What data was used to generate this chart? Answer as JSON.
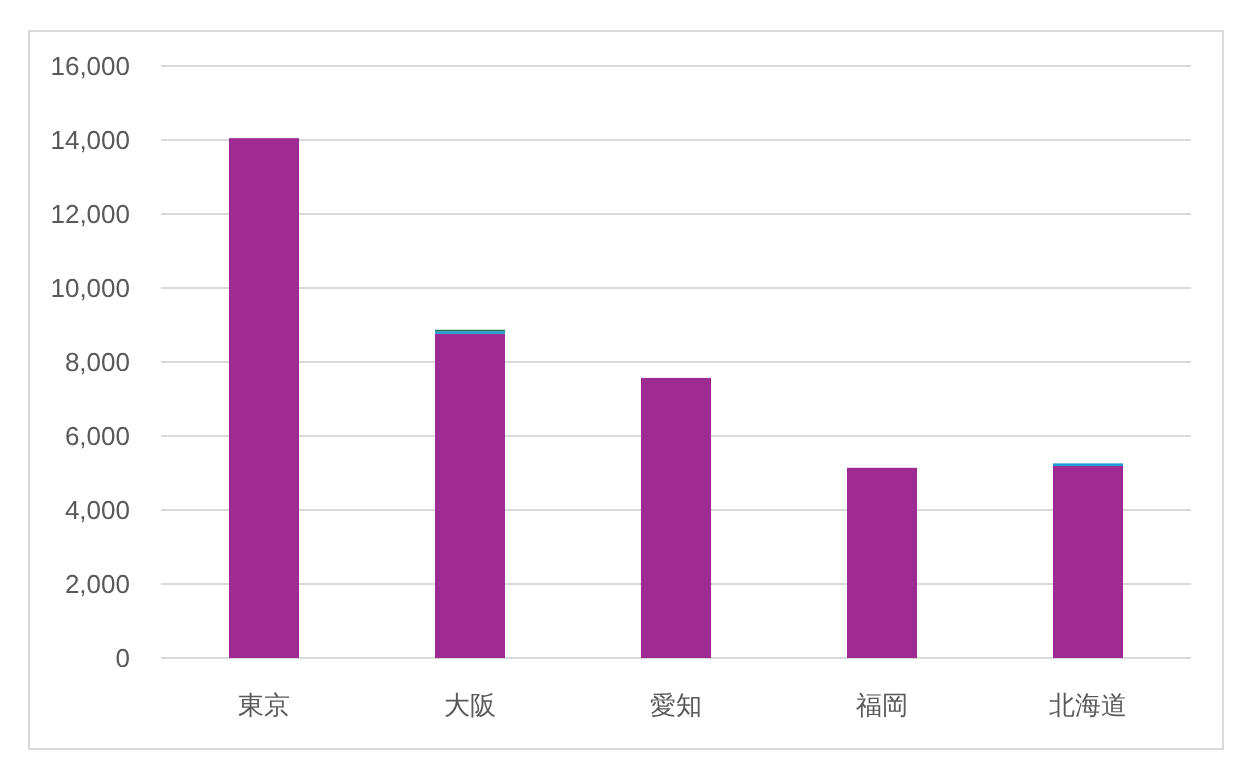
{
  "chart_data": {
    "type": "bar",
    "stacked": true,
    "categories": [
      "東京",
      "大阪",
      "愛知",
      "福岡",
      "北海道"
    ],
    "series": [
      {
        "color": "#9e2b91",
        "values": [
          14050,
          8760,
          7570,
          5140,
          5190
        ]
      },
      {
        "color": "#1e9bd7",
        "values": [
          0,
          70,
          0,
          0,
          70
        ]
      },
      {
        "color": "#1e6b52",
        "values": [
          0,
          40,
          0,
          0,
          0
        ]
      }
    ],
    "ylim": [
      0,
      16000
    ],
    "yticks": [
      {
        "value": 0,
        "label": "0"
      },
      {
        "value": 2000,
        "label": "2,000"
      },
      {
        "value": 4000,
        "label": "4,000"
      },
      {
        "value": 6000,
        "label": "6,000"
      },
      {
        "value": 8000,
        "label": "8,000"
      },
      {
        "value": 10000,
        "label": "10,000"
      },
      {
        "value": 12000,
        "label": "12,000"
      },
      {
        "value": 14000,
        "label": "14,000"
      },
      {
        "value": 16000,
        "label": "16,000"
      }
    ],
    "grid": "y"
  }
}
